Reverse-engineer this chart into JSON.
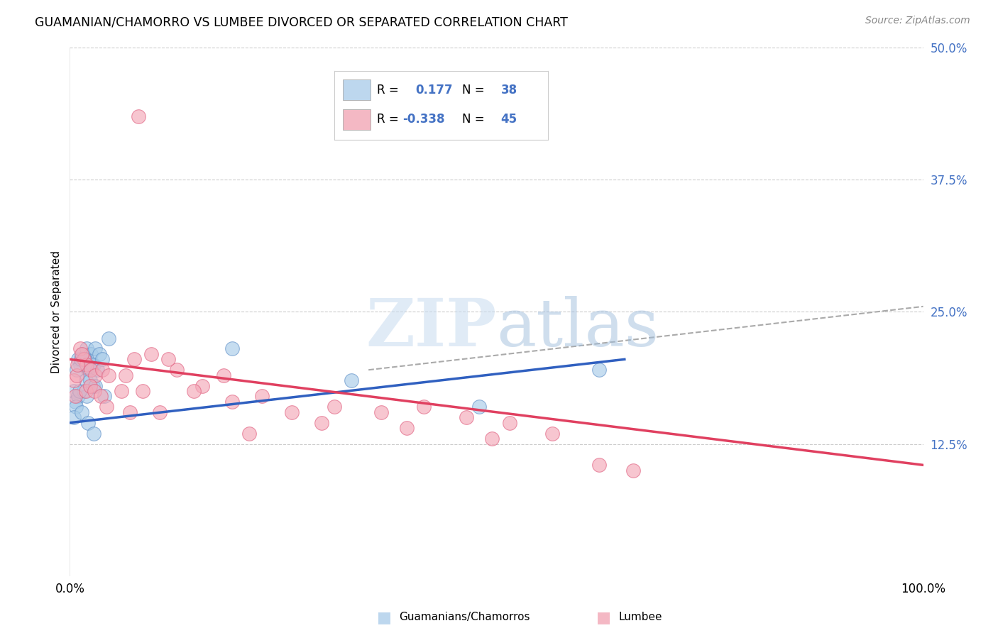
{
  "title": "GUAMANIAN/CHAMORRO VS LUMBEE DIVORCED OR SEPARATED CORRELATION CHART",
  "source": "Source: ZipAtlas.com",
  "ylabel": "Divorced or Separated",
  "legend1_r": "0.177",
  "legend1_n": "38",
  "legend2_r": "-0.338",
  "legend2_n": "45",
  "blue_color": "#A8CCE8",
  "pink_color": "#F4A8B8",
  "blue_edge_color": "#6090C8",
  "pink_edge_color": "#E06080",
  "blue_line_color": "#3060C0",
  "pink_line_color": "#E04060",
  "legend_blue_fill": "#BDD7EE",
  "legend_pink_fill": "#F4B8C4",
  "grid_color": "#CCCCCC",
  "watermark_zip_color": "#C8DCF0",
  "watermark_atlas_color": "#A0C0E8",
  "blue_scatter_x": [
    1.0,
    1.5,
    2.0,
    2.5,
    3.0,
    1.2,
    1.8,
    2.2,
    2.8,
    3.5,
    0.5,
    0.8,
    1.3,
    1.7,
    2.1,
    2.6,
    3.2,
    0.6,
    1.0,
    1.6,
    2.0,
    2.7,
    3.8,
    4.5,
    0.7,
    1.1,
    1.9,
    2.4,
    3.0,
    4.0,
    0.5,
    1.4,
    2.1,
    2.8,
    19.0,
    33.0,
    48.0,
    62.0
  ],
  "blue_scatter_y": [
    20.5,
    21.0,
    21.5,
    21.0,
    21.5,
    20.0,
    20.5,
    20.0,
    20.0,
    21.0,
    17.5,
    19.5,
    20.5,
    20.5,
    19.5,
    20.0,
    19.5,
    16.5,
    17.0,
    17.5,
    17.0,
    18.0,
    20.5,
    22.5,
    16.0,
    17.5,
    18.5,
    18.5,
    18.0,
    17.0,
    15.0,
    15.5,
    14.5,
    13.5,
    21.5,
    18.5,
    16.0,
    19.5
  ],
  "pink_scatter_x": [
    0.5,
    0.8,
    1.2,
    1.6,
    2.0,
    2.5,
    3.0,
    3.8,
    4.5,
    6.0,
    7.5,
    9.5,
    12.5,
    15.5,
    19.0,
    22.5,
    26.0,
    31.0,
    36.5,
    41.5,
    46.5,
    51.5,
    56.5,
    62.0,
    66.0,
    0.6,
    0.9,
    1.4,
    1.9,
    2.4,
    2.9,
    3.6,
    4.3,
    6.5,
    8.5,
    11.5,
    14.5,
    18.0,
    7.0,
    10.5,
    21.0,
    29.5,
    39.5,
    49.5,
    8.0
  ],
  "pink_scatter_y": [
    18.5,
    19.0,
    21.5,
    20.5,
    20.0,
    19.5,
    19.0,
    19.5,
    19.0,
    17.5,
    20.5,
    21.0,
    19.5,
    18.0,
    16.5,
    17.0,
    15.5,
    16.0,
    15.5,
    16.0,
    15.0,
    14.5,
    13.5,
    10.5,
    10.0,
    17.0,
    20.0,
    21.0,
    17.5,
    18.0,
    17.5,
    17.0,
    16.0,
    19.0,
    17.5,
    20.5,
    17.5,
    19.0,
    15.5,
    15.5,
    13.5,
    14.5,
    14.0,
    13.0,
    43.5
  ],
  "xlim": [
    0,
    100
  ],
  "ylim": [
    0,
    50
  ],
  "ytick_vals": [
    0,
    12.5,
    25.0,
    37.5,
    50.0
  ],
  "ytick_labels": [
    "",
    "12.5%",
    "25.0%",
    "37.5%",
    "50.0%"
  ],
  "xtick_vals": [
    0,
    100
  ],
  "xtick_labels": [
    "0.0%",
    "100.0%"
  ],
  "blue_line_x": [
    0,
    65
  ],
  "blue_line_y": [
    14.5,
    20.5
  ],
  "pink_line_x": [
    0,
    100
  ],
  "pink_line_y": [
    20.5,
    10.5
  ],
  "dash_line_x": [
    35,
    100
  ],
  "dash_line_y": [
    19.5,
    25.5
  ]
}
